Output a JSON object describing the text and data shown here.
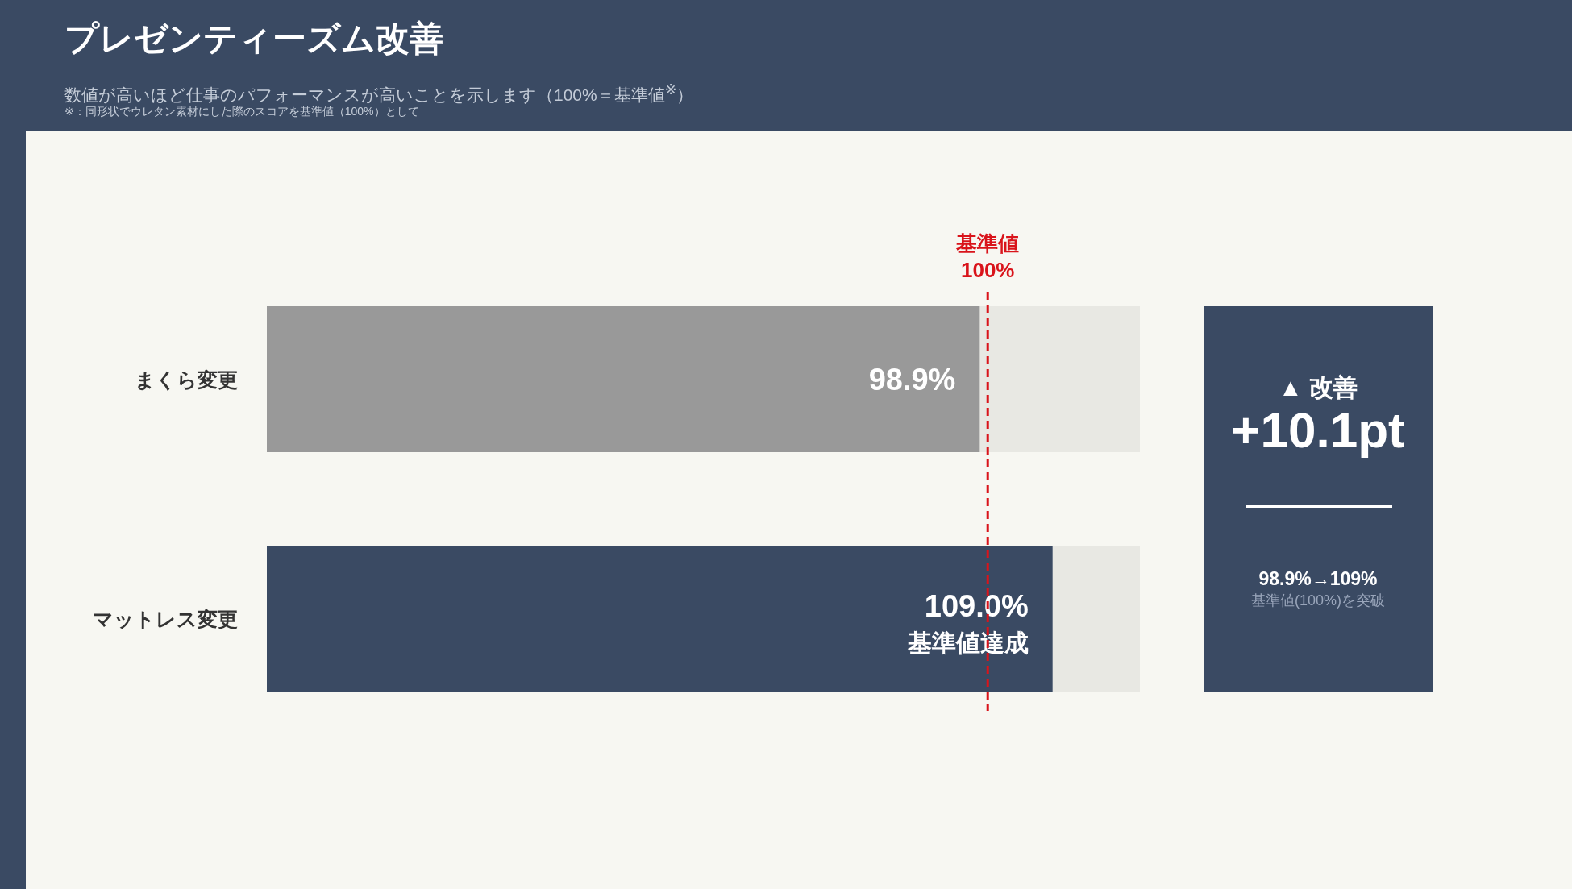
{
  "chart_data": [
    {
      "type": "bar",
      "orientation": "horizontal",
      "title": "プレゼンティーズム改善",
      "subtitle": "数値が高いほど仕事のパフォーマンスが高いことを示します（100%＝基準値$^{※}$）",
      "categories": [
        "まくら変更",
        "マットレス変更"
      ],
      "values": [
        98.9,
        109.0
      ],
      "colors": [
        "#999999",
        "#3a4a63"
      ],
      "value_labels": [
        "98.9%",
        "109.0%"
      ],
      "ref_lines": [
        {
          "axis": "x",
          "value": 100,
          "label": "基準値 100%",
          "color": "#d9141b",
          "line_style": "dashed"
        }
      ],
      "annotations": [
        "※：同形状でウレタン素材にした際のスコアを基準値（100%）として",
        {
          "text": "基準値達成",
          "x": 109.0,
          "y": "マットレス変更"
        }
      ]
    },
    {
      "type": "other",
      "annotations": [
        "▲ 改善",
        "+10.1pt",
        "98.9%→109%",
        "基準値(100%)を突破"
      ]
    }
  ]
}
